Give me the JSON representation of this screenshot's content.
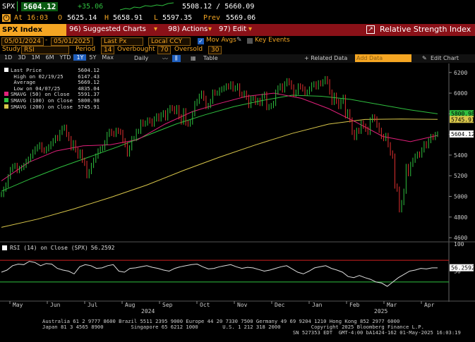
{
  "quote": {
    "ticker": "SPX",
    "price": "5604.12",
    "change": "+35.06",
    "range": "5508.12 / 5660.09",
    "time": "At 16:03",
    "open_label": "O",
    "open": "5625.14",
    "high_label": "H",
    "high": "5658.91",
    "low_label": "L",
    "low": "5597.35",
    "prev_label": "Prev",
    "prev": "5569.06"
  },
  "menubar": {
    "security": "SPX Index",
    "suggested": "96) Suggested Charts",
    "actions": "98) Actions",
    "edit": "97) Edit",
    "study_title": "Relative Strength Index"
  },
  "toolbar": {
    "start_date": "05/01/2024",
    "end_date": "05/01/2025",
    "field": "Last Px",
    "currency": "Local CCY",
    "mov_avgs": "Mov Avgs",
    "key_events": "Key Events",
    "study_label": "Study",
    "study": "RSI",
    "period_label": "Period",
    "period": "14",
    "overbought_label": "Overbought",
    "overbought": "70",
    "oversold_label": "Oversold",
    "oversold": "30"
  },
  "periods": [
    "1D",
    "3D",
    "1M",
    "6M",
    "YTD",
    "1Y",
    "5Y",
    "Max"
  ],
  "selected_period": "1Y",
  "frequency": "Daily",
  "table_label": "Table",
  "related_data": "+ Related Data",
  "add_data_placeholder": "Add Data",
  "edit_chart": "Edit Chart",
  "legend": {
    "items": [
      {
        "label": "Last Price",
        "value": "5604.12",
        "color": "#ffffff"
      },
      {
        "label": "High on 02/19/25",
        "value": "6147.43",
        "color": "#cccccc"
      },
      {
        "label": "Average",
        "value": "5669.12",
        "color": "#cccccc"
      },
      {
        "label": "Low on 04/07/25",
        "value": "4835.04",
        "color": "#cccccc"
      },
      {
        "label": "SMAVG (50) on Close",
        "value": "5591.37",
        "color": "#e0207a"
      },
      {
        "label": "SMAVG (100) on Close",
        "value": "5800.98",
        "color": "#2fbf3f"
      },
      {
        "label": "SMAVG (200) on Close",
        "value": "5745.91",
        "color": "#d8c64a"
      }
    ]
  },
  "rsi_legend": {
    "label": "RSI (14) on Close (SPX)",
    "value": "56.2592"
  },
  "chart_data": {
    "type": "line",
    "price_axis": {
      "ticks": [
        6200,
        6000,
        5800,
        5600,
        5400,
        5200,
        5000,
        4800,
        4600
      ],
      "ylim": [
        4580,
        6260
      ]
    },
    "rsi_axis": {
      "ticks": [
        100,
        50
      ],
      "ylim": [
        0,
        100
      ],
      "overbought": 70,
      "oversold": 30
    },
    "x_labels": [
      "May",
      "Jun",
      "Jul",
      "Aug",
      "Sep",
      "Oct",
      "Nov",
      "Dec",
      "Jan",
      "Feb",
      "Mar",
      "Apr"
    ],
    "year_labels": [
      "2024",
      "2025"
    ],
    "price_close": [
      5018,
      5070,
      5110,
      5190,
      5260,
      5290,
      5300,
      5250,
      5270,
      5280,
      5300,
      5340,
      5360,
      5390,
      5430,
      5460,
      5480,
      5500,
      5450,
      5440,
      5460,
      5480,
      5510,
      5540,
      5570,
      5560,
      5620,
      5660,
      5670,
      5600,
      5560,
      5470,
      5520,
      5450,
      5390,
      5430,
      5350,
      5320,
      5200,
      5240,
      5300,
      5350,
      5390,
      5440,
      5460,
      5470,
      5520,
      5600,
      5630,
      5610,
      5600,
      5640,
      5630,
      5620,
      5540,
      5500,
      5410,
      5470,
      5560,
      5560,
      5630,
      5630,
      5720,
      5700,
      5710,
      5740,
      5730,
      5700,
      5750,
      5780,
      5750,
      5790,
      5810,
      5760,
      5830,
      5860,
      5850,
      5820,
      5860,
      5770,
      5720,
      5830,
      5710,
      5700,
      5720,
      5800,
      5900,
      5920,
      5970,
      6000,
      5950,
      5870,
      5880,
      5920,
      6010,
      6000,
      6000,
      6030,
      6040,
      6050,
      6070,
      6060,
      6090,
      6040,
      6050,
      6070,
      5990,
      5980,
      6000,
      5960,
      5880,
      5950,
      5950,
      5910,
      5930,
      5900,
      5970,
      5990,
      5860,
      5870,
      5880,
      5900,
      6010,
      6050,
      6070,
      6030,
      6090,
      6120,
      6100,
      6060,
      5990,
      6010,
      6070,
      6060,
      6040,
      6000,
      6010,
      6040,
      6080,
      6090,
      6060,
      6100,
      6090,
      6110,
      6140,
      6110,
      6010,
      5910,
      5980,
      5920,
      5870,
      5920,
      5960,
      5780,
      5820,
      5740,
      5620,
      5570,
      5640,
      5630,
      5710,
      5680,
      5650,
      5620,
      5740,
      5770,
      5750,
      5690,
      5640,
      5580,
      5560,
      5590,
      5500,
      5420,
      5390,
      5100,
      5070,
      4870,
      4940,
      5050,
      5290,
      5220,
      5310,
      5350,
      5390,
      5410,
      5400,
      5450,
      5510,
      5490,
      5540,
      5580,
      5570,
      5600,
      5604
    ],
    "sma50": [
      5150,
      5330,
      5440,
      5490,
      5500,
      5550,
      5700,
      5820,
      5900,
      5970,
      6000,
      5950,
      5850,
      5720,
      5580,
      5530,
      5591
    ],
    "sma100": [
      5050,
      5170,
      5280,
      5380,
      5480,
      5590,
      5700,
      5790,
      5870,
      5930,
      5980,
      5970,
      5940,
      5890,
      5840,
      5800
    ],
    "sma200": [
      4700,
      4780,
      4880,
      4990,
      5110,
      5250,
      5380,
      5500,
      5610,
      5700,
      5745,
      5750,
      5746
    ],
    "rsi": [
      48,
      52,
      60,
      63,
      62,
      68,
      66,
      60,
      64,
      63,
      55,
      52,
      50,
      45,
      58,
      62,
      60,
      55,
      56,
      60,
      62,
      50,
      48,
      55,
      56,
      58,
      60,
      57,
      55,
      52,
      50,
      55,
      58,
      60,
      62,
      63,
      58,
      54,
      55,
      58,
      60,
      62,
      58,
      55,
      57,
      56,
      53,
      50,
      52,
      55,
      58,
      60,
      54,
      48,
      45,
      50,
      56,
      58,
      60,
      55,
      52,
      48,
      40,
      38,
      42,
      38,
      35,
      30,
      28,
      22,
      30,
      38,
      44,
      50,
      52,
      55,
      54,
      56,
      56
    ]
  }
}
